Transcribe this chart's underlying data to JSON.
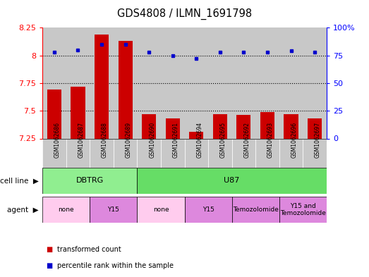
{
  "title": "GDS4808 / ILMN_1691798",
  "samples": [
    "GSM1062686",
    "GSM1062687",
    "GSM1062688",
    "GSM1062689",
    "GSM1062690",
    "GSM1062691",
    "GSM1062694",
    "GSM1062695",
    "GSM1062692",
    "GSM1062693",
    "GSM1062696",
    "GSM1062697"
  ],
  "red_values": [
    7.69,
    7.72,
    8.19,
    8.13,
    7.47,
    7.43,
    7.31,
    7.47,
    7.46,
    7.49,
    7.47,
    7.43
  ],
  "blue_values": [
    78,
    80,
    85,
    85,
    78,
    75,
    72,
    78,
    78,
    78,
    79,
    78
  ],
  "red_baseline": 7.25,
  "ylim_left": [
    7.25,
    8.25
  ],
  "ylim_right": [
    0,
    100
  ],
  "yticks_left": [
    7.25,
    7.5,
    7.75,
    8.0,
    8.25
  ],
  "yticks_left_labels": [
    "7.25",
    "7.5",
    "7.75",
    "8",
    "8.25"
  ],
  "yticks_right": [
    0,
    25,
    50,
    75,
    100
  ],
  "yticks_right_labels": [
    "0",
    "25",
    "50",
    "75",
    "100%"
  ],
  "dotted_lines": [
    8.0,
    7.75,
    7.5
  ],
  "bar_color": "#CC0000",
  "dot_color": "#0000CC",
  "col_bg_color": "#C8C8C8",
  "cell_line_groups": [
    {
      "label": "DBTRG",
      "cols": [
        0,
        1,
        2,
        3
      ],
      "color": "#90EE90"
    },
    {
      "label": "U87",
      "cols": [
        4,
        5,
        6,
        7,
        8,
        9,
        10,
        11
      ],
      "color": "#66DD66"
    }
  ],
  "agent_groups": [
    {
      "label": "none",
      "cols": [
        0,
        1
      ],
      "color": "#FFCCEE"
    },
    {
      "label": "Y15",
      "cols": [
        2,
        3
      ],
      "color": "#DD88DD"
    },
    {
      "label": "none",
      "cols": [
        4,
        5
      ],
      "color": "#FFCCEE"
    },
    {
      "label": "Y15",
      "cols": [
        6,
        7
      ],
      "color": "#DD88DD"
    },
    {
      "label": "Temozolomide",
      "cols": [
        8,
        9
      ],
      "color": "#DD88DD"
    },
    {
      "label": "Y15 and\nTemozolomide",
      "cols": [
        10,
        11
      ],
      "color": "#DD88DD"
    }
  ],
  "cell_line_label": "cell line",
  "agent_label": "agent",
  "legend": [
    {
      "label": "transformed count",
      "color": "#CC0000"
    },
    {
      "label": "percentile rank within the sample",
      "color": "#0000CC"
    }
  ]
}
